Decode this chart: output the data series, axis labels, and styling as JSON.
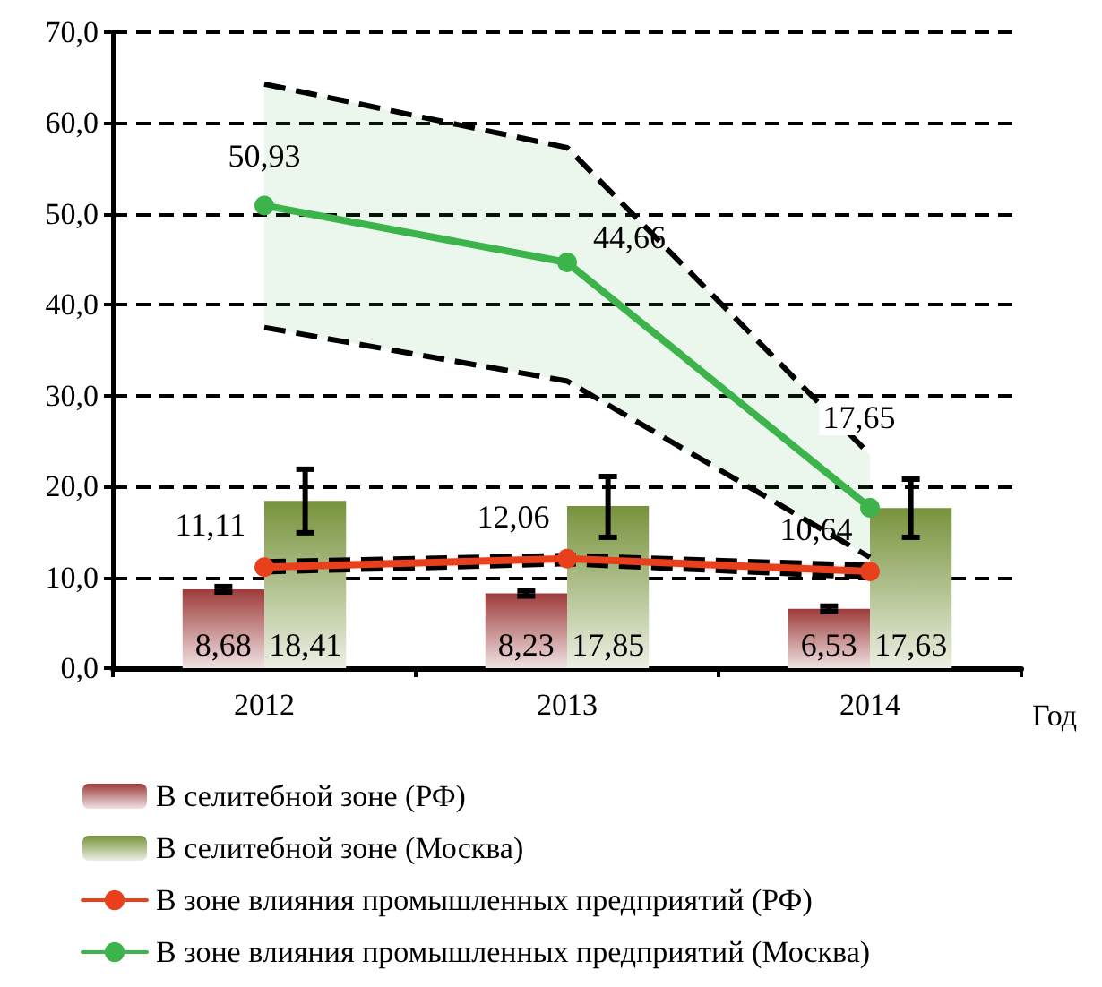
{
  "chart_data": {
    "type": "bar",
    "categories": [
      "2012",
      "2013",
      "2014"
    ],
    "xlabel": "Год",
    "series": [
      {
        "name": "В селитебной зоне (РФ)",
        "color": "#9e3b3b",
        "values": [
          8.68,
          8.23,
          6.53
        ],
        "value_labels": [
          "8,68",
          "8,23",
          "6,53"
        ],
        "errors": [
          0.3,
          0.3,
          0.3
        ]
      },
      {
        "name": "В селитебной зоне (Москва)",
        "color": "#77933c",
        "values": [
          18.41,
          17.85,
          17.63
        ],
        "value_labels": [
          "18,41",
          "17,85",
          "17,63"
        ],
        "errors": [
          [
            14.9,
            21.9
          ],
          [
            14.4,
            21.1
          ],
          [
            14.4,
            20.8
          ]
        ]
      },
      {
        "name": "В зоне влияния промышленных предприятий (РФ)",
        "type": "line",
        "color": "#e8401c",
        "values": [
          11.11,
          12.06,
          10.64
        ],
        "value_labels": [
          "11,11",
          "12,06",
          "10,64"
        ],
        "lower": [
          10.6,
          11.5,
          10.0
        ],
        "upper": [
          11.7,
          12.4,
          11.3
        ]
      },
      {
        "name": "В зоне влияния промышленных предприятий (Москва)",
        "type": "line",
        "color": "#3cb44b",
        "values": [
          50.93,
          44.66,
          17.65
        ],
        "value_labels": [
          "50,93",
          "44,66",
          "17,65"
        ],
        "lower": [
          37.5,
          31.6,
          12.2
        ],
        "upper": [
          64.3,
          57.3,
          23.5
        ]
      }
    ],
    "ylim": [
      0,
      70
    ],
    "yticks": [
      {
        "value": 0,
        "label": "0,0"
      },
      {
        "value": 10,
        "label": "10,0"
      },
      {
        "value": 20,
        "label": "20,0"
      },
      {
        "value": 30,
        "label": "30,0"
      },
      {
        "value": 40,
        "label": "40,0"
      },
      {
        "value": 50,
        "label": "50,0"
      },
      {
        "value": 60,
        "label": "60,0"
      },
      {
        "value": 70,
        "label": "70,0"
      }
    ],
    "grid": "y",
    "legend": "bottom",
    "marker": "circle",
    "line_style": "solid"
  }
}
